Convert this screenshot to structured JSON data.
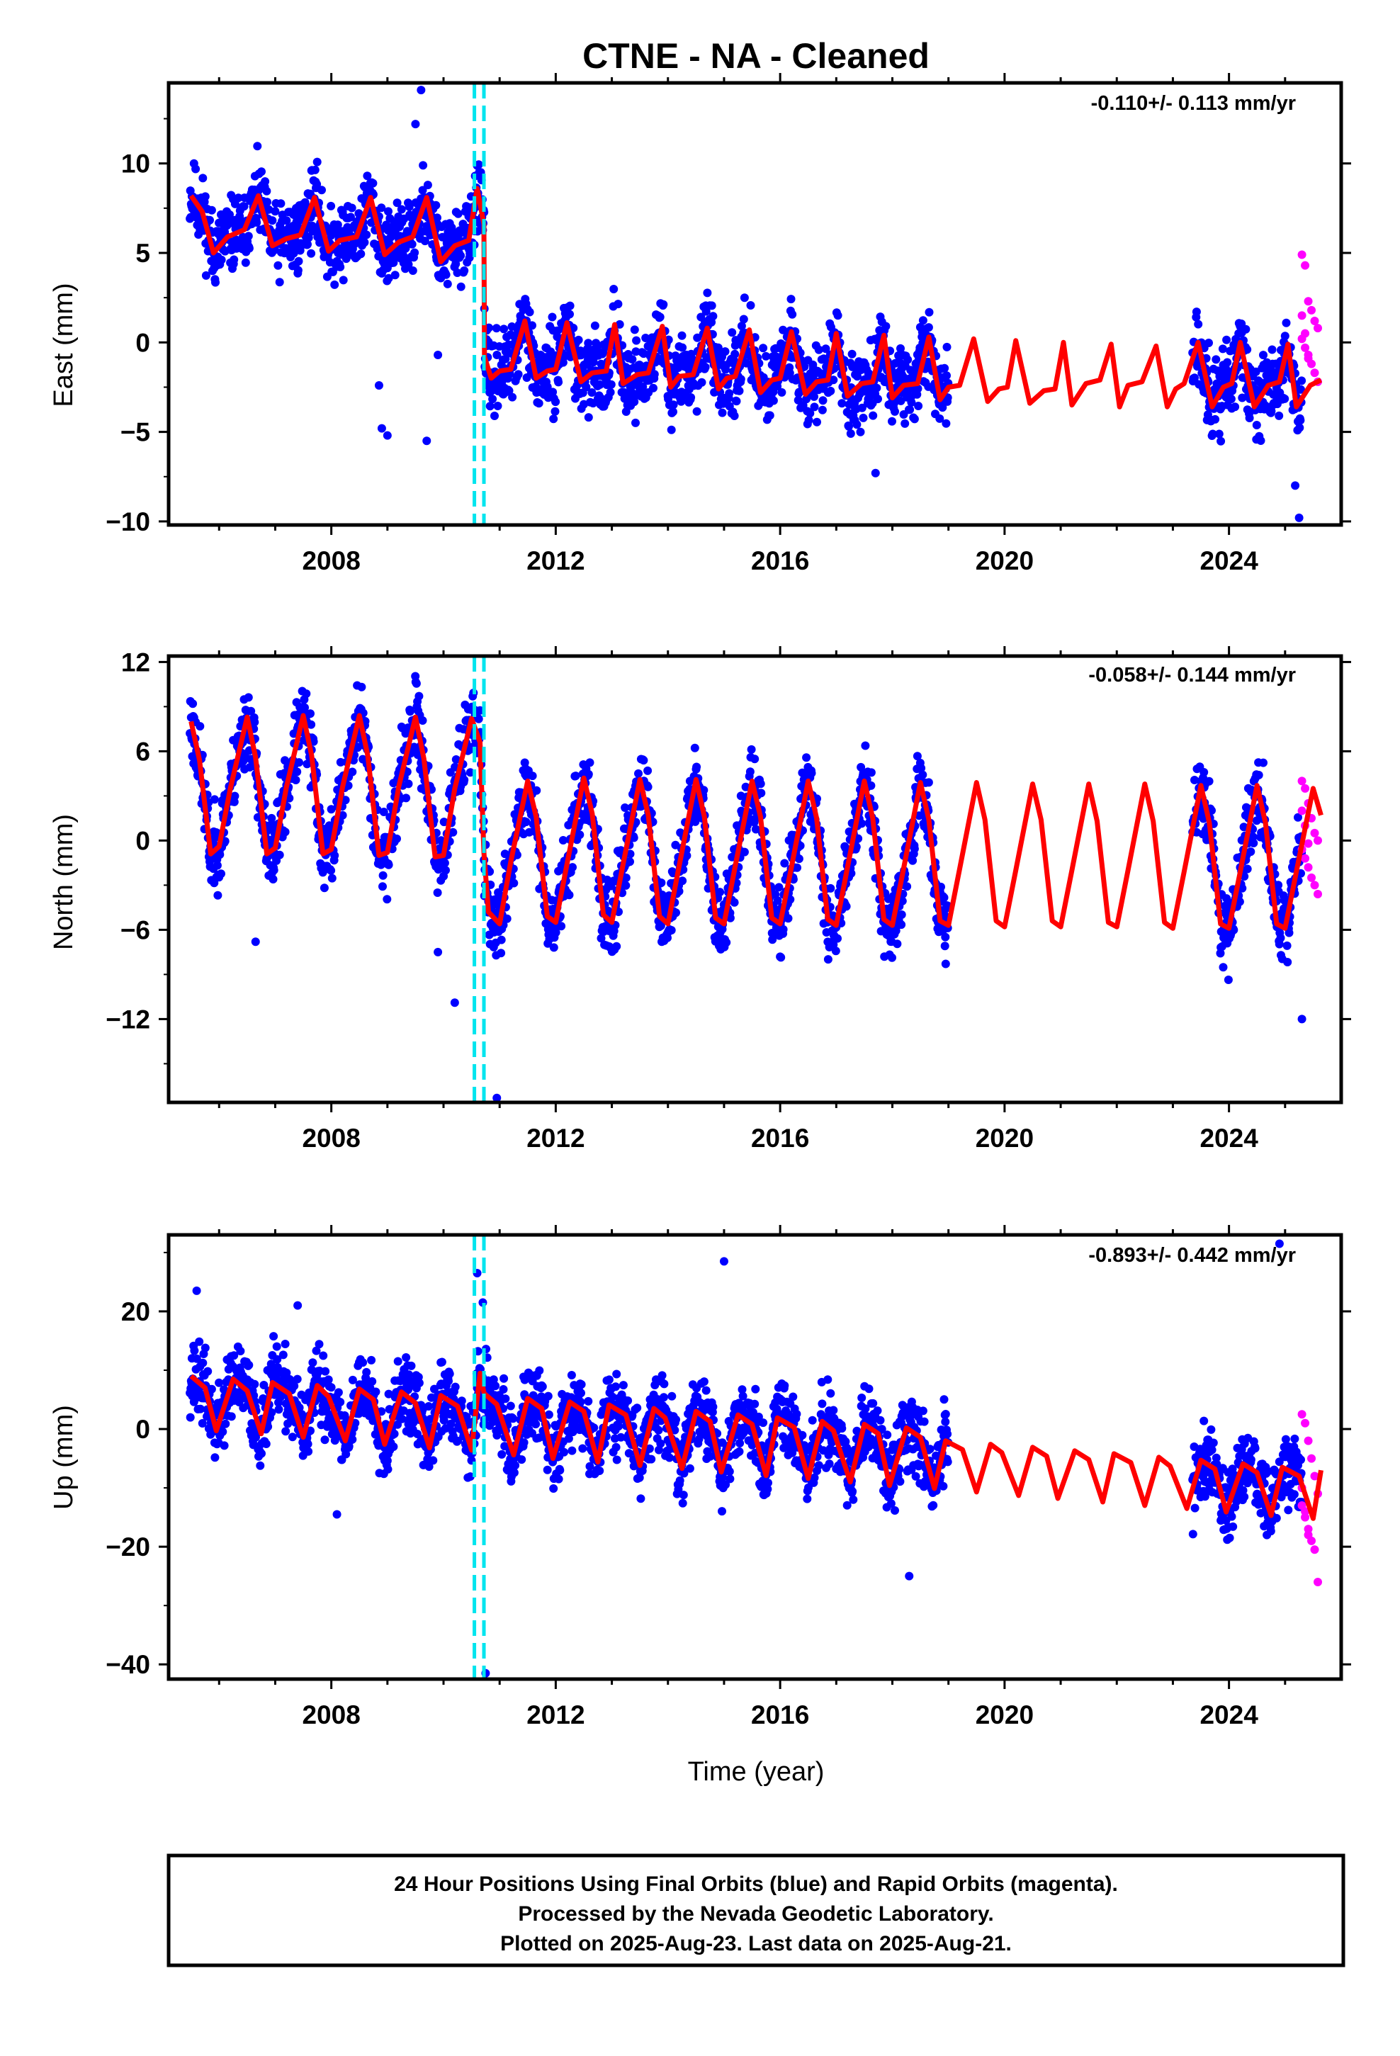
{
  "chart_data": {
    "title": "CTNE  - NA - Cleaned",
    "type": "scatter",
    "xlabel": "Time (year)",
    "xlim": [
      2005.1,
      2026.0
    ],
    "x_ticks": [
      2008,
      2012,
      2016,
      2020,
      2024
    ],
    "offset_lines": [
      2010.55,
      2010.72
    ],
    "rapid_orbit_x_range": [
      2025.3,
      2025.64
    ],
    "data_gap": [
      2019.0,
      2023.35
    ],
    "colors": {
      "final_orbits": "#0000ff",
      "rapid_orbits": "#ff00ff",
      "model_fit": "#ff0000",
      "offset_lines": "#00e5ee"
    },
    "panels": [
      {
        "component": "east",
        "ylabel": "East (mm)",
        "rate": "-0.110+/- 0.113 mm/yr",
        "ylim": [
          -10.2,
          14.5
        ],
        "y_ticks": [
          -10,
          -5,
          0,
          5,
          10
        ],
        "seed": 11,
        "model_fit": {
          "x": [
            2005.5,
            2005.7,
            2005.9,
            2006.15,
            2006.45,
            2006.7,
            2006.95,
            2007.2,
            2007.45,
            2007.7,
            2007.95,
            2008.15,
            2008.45,
            2008.7,
            2008.95,
            2009.2,
            2009.45,
            2009.7,
            2009.95,
            2010.2,
            2010.45,
            2010.6,
            2010.72,
            2010.73,
            2010.85,
            2011.0,
            2011.2,
            2011.45,
            2011.65,
            2011.85,
            2012.0,
            2012.2,
            2012.45,
            2012.65,
            2012.9,
            2013.05,
            2013.2,
            2013.45,
            2013.65,
            2013.9,
            2014.05,
            2014.2,
            2014.45,
            2014.7,
            2014.9,
            2015.05,
            2015.2,
            2015.45,
            2015.65,
            2015.85,
            2016.0,
            2016.2,
            2016.45,
            2016.65,
            2016.85,
            2017.0,
            2017.2,
            2017.45,
            2017.65,
            2017.85,
            2018.0,
            2018.2,
            2018.45,
            2018.65,
            2018.85,
            2019.0,
            2019.2,
            2019.45,
            2019.7,
            2019.9,
            2020.05,
            2020.2,
            2020.45,
            2020.7,
            2020.9,
            2021.05,
            2021.2,
            2021.45,
            2021.7,
            2021.9,
            2022.05,
            2022.2,
            2022.45,
            2022.7,
            2022.9,
            2023.05,
            2023.2,
            2023.45,
            2023.7,
            2023.9,
            2024.05,
            2024.2,
            2024.45,
            2024.7,
            2024.9,
            2025.05,
            2025.2,
            2025.45,
            2025.64
          ],
          "y": [
            8.2,
            7.3,
            5.0,
            5.9,
            6.3,
            8.2,
            5.4,
            5.8,
            6.0,
            8.1,
            5.1,
            5.7,
            5.9,
            8.1,
            4.9,
            5.6,
            5.9,
            8.1,
            4.5,
            5.4,
            5.7,
            8.6,
            6.6,
            -0.8,
            -2.0,
            -1.6,
            -1.5,
            1.2,
            -2.0,
            -1.6,
            -1.5,
            1.1,
            -2.2,
            -1.7,
            -1.6,
            1.0,
            -2.3,
            -1.8,
            -1.7,
            0.9,
            -2.5,
            -1.9,
            -1.8,
            0.8,
            -2.6,
            -2.0,
            -1.9,
            0.7,
            -2.8,
            -2.1,
            -2.0,
            0.6,
            -2.9,
            -2.2,
            -2.1,
            0.5,
            -3.0,
            -2.3,
            -2.2,
            0.4,
            -3.1,
            -2.4,
            -2.3,
            0.3,
            -3.2,
            -2.5,
            -2.4,
            0.2,
            -3.3,
            -2.6,
            -2.5,
            0.1,
            -3.4,
            -2.7,
            -2.6,
            0.0,
            -3.5,
            -2.3,
            -2.1,
            -0.1,
            -3.6,
            -2.4,
            -2.2,
            -0.2,
            -3.6,
            -2.6,
            -2.3,
            0.0,
            -3.6,
            -2.5,
            -2.3,
            0.0,
            -3.6,
            -2.4,
            -2.2,
            -0.1,
            -3.6,
            -2.4,
            -2.1
          ]
        },
        "outliers": [
          [
            2009.6,
            14.1
          ],
          [
            2009.5,
            12.2
          ],
          [
            2008.85,
            -2.4
          ],
          [
            2008.9,
            -4.8
          ],
          [
            2009.9,
            -0.7
          ],
          [
            2009.7,
            -5.5
          ],
          [
            2009.0,
            -5.2
          ],
          [
            2025.25,
            -9.8
          ],
          [
            2025.18,
            -8.0
          ],
          [
            2017.7,
            -7.3
          ]
        ],
        "rapid_points": [
          4.9,
          4.3,
          2.3,
          1.8,
          1.2,
          0.8,
          0.2,
          -0.3,
          -0.7,
          -1.2,
          -1.7,
          -2.2,
          1.5,
          0.5,
          -0.9
        ]
      },
      {
        "component": "north",
        "ylabel": "North (mm)",
        "rate": "-0.058+/- 0.144 mm/yr",
        "ylim": [
          -17.6,
          12.4
        ],
        "y_ticks": [
          -12,
          -6,
          0,
          6,
          12
        ],
        "seed": 23,
        "model_fit": {
          "x": [
            2005.5,
            2005.65,
            2005.85,
            2006.0,
            2006.2,
            2006.5,
            2006.65,
            2006.85,
            2007.0,
            2007.2,
            2007.5,
            2007.65,
            2007.85,
            2008.0,
            2008.2,
            2008.5,
            2008.65,
            2008.85,
            2009.0,
            2009.2,
            2009.5,
            2009.65,
            2009.85,
            2010.0,
            2010.2,
            2010.5,
            2010.65,
            2010.72,
            2010.8,
            2011.0,
            2011.2,
            2011.5,
            2011.65,
            2011.85,
            2012.0,
            2012.2,
            2012.5,
            2012.65,
            2012.85,
            2013.0,
            2013.2,
            2013.5,
            2013.65,
            2013.85,
            2014.0,
            2014.2,
            2014.5,
            2014.65,
            2014.85,
            2015.0,
            2015.2,
            2015.5,
            2015.65,
            2015.85,
            2016.0,
            2016.2,
            2016.5,
            2016.65,
            2016.85,
            2017.0,
            2017.2,
            2017.5,
            2017.65,
            2017.85,
            2018.0,
            2018.2,
            2018.5,
            2018.65,
            2018.85,
            2019.0,
            2019.2,
            2019.5,
            2019.65,
            2019.85,
            2020.0,
            2020.2,
            2020.5,
            2020.65,
            2020.85,
            2021.0,
            2021.2,
            2021.5,
            2021.65,
            2021.85,
            2022.0,
            2022.2,
            2022.5,
            2022.65,
            2022.85,
            2023.0,
            2023.2,
            2023.5,
            2023.65,
            2023.85,
            2024.0,
            2024.2,
            2024.5,
            2024.65,
            2024.85,
            2025.0,
            2025.2,
            2025.5,
            2025.64
          ],
          "y": [
            8.0,
            5.4,
            -0.9,
            -0.4,
            3.5,
            8.3,
            5.6,
            -0.9,
            -0.5,
            3.6,
            8.4,
            5.7,
            -0.9,
            -0.6,
            3.6,
            8.4,
            5.7,
            -1.0,
            -0.8,
            3.6,
            8.3,
            5.5,
            -1.1,
            -1.0,
            3.5,
            8.2,
            6.6,
            -0.8,
            -4.8,
            -5.6,
            -1.4,
            4.0,
            1.6,
            -5.1,
            -5.5,
            -1.6,
            4.2,
            1.8,
            -5.0,
            -5.5,
            -1.6,
            4.1,
            1.7,
            -5.1,
            -5.6,
            -1.7,
            4.1,
            1.6,
            -5.2,
            -5.6,
            -1.7,
            4.0,
            1.6,
            -5.2,
            -5.6,
            -1.8,
            4.0,
            1.5,
            -5.3,
            -5.7,
            -1.8,
            4.0,
            1.5,
            -5.3,
            -5.7,
            -1.9,
            3.9,
            1.4,
            -5.4,
            -5.7,
            -1.9,
            3.9,
            1.4,
            -5.4,
            -5.8,
            -2.0,
            3.8,
            1.4,
            -5.4,
            -5.8,
            -2.0,
            3.8,
            1.3,
            -5.5,
            -5.8,
            -2.0,
            3.8,
            1.3,
            -5.5,
            -5.9,
            -2.1,
            3.7,
            1.2,
            -5.6,
            -5.9,
            -2.1,
            3.7,
            1.2,
            -5.6,
            -5.9,
            -2.1,
            3.5,
            1.7
          ]
        },
        "outliers": [
          [
            2006.65,
            -6.8
          ],
          [
            2009.9,
            -7.5
          ],
          [
            2010.2,
            -10.9
          ],
          [
            2010.95,
            -17.3
          ],
          [
            2025.3,
            -12.0
          ]
        ],
        "rapid_points": [
          4.0,
          3.5,
          2.5,
          1.5,
          0.5,
          0.0,
          -0.6,
          -1.2,
          -1.8,
          -2.5,
          -3.0,
          -3.6,
          2.0,
          1.0,
          -0.2
        ]
      },
      {
        "component": "up",
        "ylabel": "Up (mm)",
        "rate": "-0.893+/- 0.442 mm/yr",
        "ylim": [
          -42.5,
          33.0
        ],
        "y_ticks": [
          -40,
          -20,
          0,
          20
        ],
        "seed": 37,
        "model_fit": {
          "x": [
            2005.5,
            2005.75,
            2005.95,
            2006.25,
            2006.5,
            2006.75,
            2006.95,
            2007.25,
            2007.5,
            2007.75,
            2007.95,
            2008.25,
            2008.5,
            2008.75,
            2008.95,
            2009.25,
            2009.5,
            2009.75,
            2009.95,
            2010.25,
            2010.5,
            2010.65,
            2010.72,
            2010.73,
            2010.95,
            2011.25,
            2011.5,
            2011.75,
            2011.95,
            2012.25,
            2012.5,
            2012.75,
            2012.95,
            2013.25,
            2013.5,
            2013.75,
            2013.95,
            2014.25,
            2014.5,
            2014.75,
            2014.95,
            2015.25,
            2015.5,
            2015.75,
            2015.95,
            2016.25,
            2016.5,
            2016.75,
            2016.95,
            2017.25,
            2017.5,
            2017.75,
            2017.95,
            2018.25,
            2018.5,
            2018.75,
            2018.95,
            2019.25,
            2019.5,
            2019.75,
            2019.95,
            2020.25,
            2020.5,
            2020.75,
            2020.95,
            2021.25,
            2021.5,
            2021.75,
            2021.95,
            2022.25,
            2022.5,
            2022.75,
            2022.95,
            2023.25,
            2023.5,
            2023.75,
            2023.95,
            2024.25,
            2024.5,
            2024.75,
            2024.95,
            2025.25,
            2025.5,
            2025.64
          ],
          "y": [
            9.0,
            7.0,
            -0.3,
            8.5,
            6.5,
            -0.8,
            7.9,
            6.0,
            -1.4,
            7.4,
            5.5,
            -2.0,
            6.8,
            5.0,
            -2.6,
            6.3,
            4.4,
            -3.2,
            5.7,
            3.9,
            -3.6,
            9.5,
            6.2,
            6.0,
            4.2,
            -4.4,
            5.2,
            3.5,
            -5.0,
            4.6,
            3.0,
            -5.6,
            4.1,
            2.4,
            -6.2,
            3.5,
            1.9,
            -6.7,
            3.0,
            1.3,
            -7.3,
            2.4,
            0.8,
            -7.9,
            1.9,
            0.3,
            -8.4,
            1.3,
            -0.3,
            -9.0,
            0.8,
            -0.8,
            -9.6,
            0.2,
            -1.4,
            -10.1,
            -2.0,
            -3.5,
            -10.7,
            -2.6,
            -4.0,
            -11.3,
            -3.1,
            -4.6,
            -11.8,
            -3.7,
            -5.2,
            -12.4,
            -4.2,
            -5.7,
            -13.0,
            -4.8,
            -6.3,
            -13.5,
            -5.3,
            -6.8,
            -14.1,
            -5.9,
            -7.4,
            -14.7,
            -6.5,
            -8.0,
            -15.2,
            -7.0
          ]
        },
        "outliers": [
          [
            2010.6,
            26.5
          ],
          [
            2010.7,
            21.5
          ],
          [
            2015.0,
            28.5
          ],
          [
            2024.9,
            31.5
          ],
          [
            2010.75,
            -41.5
          ],
          [
            2018.3,
            -25.0
          ],
          [
            2007.4,
            21.0
          ],
          [
            2005.6,
            23.5
          ],
          [
            2008.1,
            -14.5
          ]
        ],
        "rapid_points": [
          2.5,
          1.0,
          -2.0,
          -5.0,
          -8.0,
          -11.0,
          -13.0,
          -15.0,
          -17.0,
          -19.0,
          -20.5,
          -26.0,
          -10.0,
          -14.0,
          -18.0
        ]
      }
    ],
    "footer": [
      "24 Hour Positions Using Final Orbits (blue) and Rapid Orbits (magenta).",
      "Processed by the Nevada Geodetic Laboratory.",
      "Plotted on 2025-Aug-23. Last data on 2025-Aug-21."
    ]
  }
}
